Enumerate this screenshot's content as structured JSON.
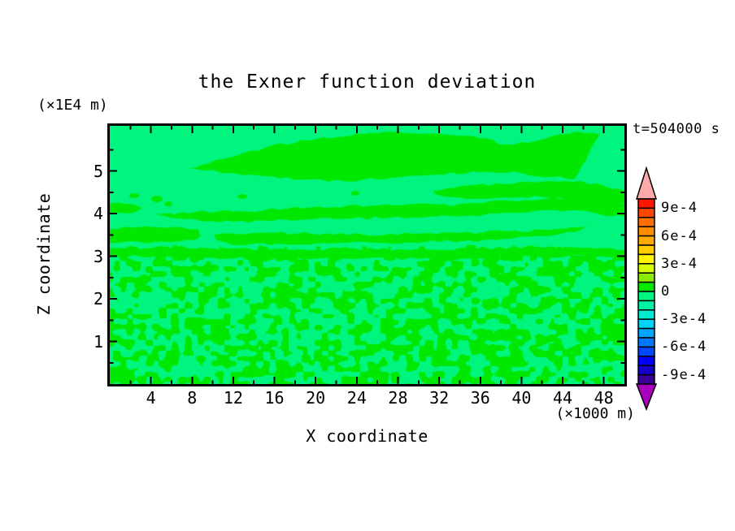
{
  "title": "the Exner function deviation",
  "time_label": "t=504000 s",
  "y_unit_label": "(×1E4 m)",
  "x_unit_label": "(×1000 m)",
  "x_axis_label": "X coordinate",
  "y_axis_label": "Z coordinate",
  "chart_data": {
    "type": "filled-contour",
    "title": "the Exner function deviation",
    "xlabel": "X coordinate",
    "ylabel": "Z coordinate",
    "x_units": "(×1000 m)",
    "y_units": "(×1E4 m)",
    "time_annotation": "t=504000 s",
    "x_range": [
      0,
      50
    ],
    "y_range": [
      0,
      6.06
    ],
    "x_major_ticks": [
      4,
      8,
      12,
      16,
      20,
      24,
      28,
      32,
      36,
      40,
      44,
      48
    ],
    "x_minor_ticks": [
      2,
      6,
      10,
      14,
      18,
      22,
      26,
      30,
      34,
      38,
      42,
      46
    ],
    "y_major_ticks": [
      1,
      2,
      3,
      4,
      5
    ],
    "y_minor_ticks": [
      0.5,
      1.5,
      2.5,
      3.5,
      4.5,
      5.5
    ],
    "contour_interval": 0.0001,
    "colorbar": {
      "labels": [
        "9e-4",
        "6e-4",
        "3e-4",
        "0",
        "-3e-4",
        "-6e-4",
        "-9e-4"
      ],
      "label_boundary_index": [
        1,
        4,
        7,
        10,
        13,
        16,
        19
      ],
      "segment_values_top_to_bottom": "10e-4 down to -10e-4 in 1e-4 steps",
      "segment_colors": [
        "#FF1400",
        "#FF4600",
        "#FF6E00",
        "#FF8C00",
        "#FFAA00",
        "#FFCD00",
        "#FFF500",
        "#D7FF00",
        "#8CEB00",
        "#00E800",
        "#00F57E",
        "#00F0A5",
        "#00EBD2",
        "#00D2F5",
        "#00A5FF",
        "#0078FF",
        "#0046FF",
        "#0000F5",
        "#1400C8",
        "#3C0096"
      ],
      "over_color": "#FFAAAA",
      "under_color": "#AA00BE"
    },
    "field_colors": {
      "slightly_positive_0_to_1e-4": "#00E800",
      "slightly_negative_0_to_-1e-4": "#00F57E"
    },
    "field_structure": {
      "bands": [
        [
          [
            95,
            52
          ],
          [
            138,
            41
          ],
          [
            200,
            24
          ],
          [
            262,
            14
          ],
          [
            330,
            9
          ],
          [
            408,
            10
          ],
          [
            455,
            15
          ],
          [
            488,
            23
          ],
          [
            515,
            21
          ],
          [
            545,
            12
          ],
          [
            575,
            7
          ],
          [
            603,
            11
          ],
          [
            592,
            28
          ],
          [
            581,
            48
          ],
          [
            571,
            66
          ],
          [
            545,
            63
          ],
          [
            505,
            58
          ],
          [
            455,
            57
          ],
          [
            402,
            60
          ],
          [
            348,
            64
          ],
          [
            295,
            69
          ],
          [
            243,
            66
          ],
          [
            192,
            62
          ],
          [
            148,
            58
          ],
          [
            117,
            55
          ]
        ],
        [
          [
            398,
            80
          ],
          [
            448,
            73
          ],
          [
            505,
            69
          ],
          [
            560,
            68
          ],
          [
            600,
            71
          ],
          [
            633,
            80
          ],
          [
            633,
            95
          ],
          [
            595,
            92
          ],
          [
            552,
            88
          ],
          [
            505,
            88
          ],
          [
            458,
            90
          ],
          [
            422,
            88
          ],
          [
            400,
            84
          ]
        ],
        [
          [
            0,
            96
          ],
          [
            30,
            97
          ],
          [
            40,
            101
          ],
          [
            32,
            106
          ],
          [
            0,
            107
          ]
        ],
        [
          [
            55,
            109
          ],
          [
            105,
            106
          ],
          [
            160,
            105
          ],
          [
            218,
            102
          ],
          [
            275,
            100
          ],
          [
            330,
            98
          ],
          [
            378,
            96
          ],
          [
            420,
            99
          ],
          [
            448,
            95
          ],
          [
            492,
            92
          ],
          [
            538,
            90
          ],
          [
            578,
            88
          ],
          [
            612,
            90
          ],
          [
            633,
            96
          ],
          [
            633,
            112
          ],
          [
            600,
            108
          ],
          [
            565,
            104
          ],
          [
            522,
            105
          ],
          [
            478,
            108
          ],
          [
            436,
            111
          ],
          [
            392,
            112
          ],
          [
            345,
            113
          ],
          [
            298,
            114
          ],
          [
            250,
            115
          ],
          [
            200,
            117
          ],
          [
            152,
            118
          ],
          [
            108,
            116
          ],
          [
            75,
            113
          ]
        ],
        [
          [
            0,
            127
          ],
          [
            55,
            125
          ],
          [
            108,
            127
          ],
          [
            112,
            136
          ],
          [
            104,
            141
          ],
          [
            55,
            143
          ],
          [
            0,
            144
          ]
        ],
        [
          [
            128,
            134
          ],
          [
            185,
            132
          ],
          [
            248,
            133
          ],
          [
            312,
            134
          ],
          [
            372,
            133
          ],
          [
            430,
            132
          ],
          [
            488,
            130
          ],
          [
            532,
            128
          ],
          [
            568,
            125
          ],
          [
            596,
            121
          ],
          [
            572,
            131
          ],
          [
            538,
            136
          ],
          [
            492,
            139
          ],
          [
            442,
            141
          ],
          [
            388,
            143
          ],
          [
            330,
            144
          ],
          [
            272,
            145
          ],
          [
            215,
            146
          ],
          [
            162,
            147
          ],
          [
            132,
            141
          ]
        ],
        [
          [
            0,
            151
          ],
          [
            70,
            149
          ],
          [
            150,
            151
          ],
          [
            225,
            153
          ],
          [
            300,
            151
          ],
          [
            375,
            153
          ],
          [
            450,
            151
          ],
          [
            525,
            149
          ],
          [
            590,
            150
          ],
          [
            633,
            153
          ],
          [
            633,
            161
          ],
          [
            585,
            160
          ],
          [
            520,
            161
          ],
          [
            450,
            163
          ],
          [
            380,
            164
          ],
          [
            310,
            163
          ],
          [
            240,
            164
          ],
          [
            170,
            163
          ],
          [
            100,
            162
          ],
          [
            40,
            161
          ],
          [
            0,
            160
          ]
        ]
      ],
      "dots": [
        [
          30,
          86,
          6,
          3
        ],
        [
          58,
          90,
          7,
          4
        ],
        [
          72,
          96,
          5,
          3
        ],
        [
          163,
          87,
          6,
          3
        ],
        [
          302,
          83,
          5,
          3
        ],
        [
          202,
          44,
          5,
          3
        ]
      ],
      "noise": {
        "scale_x": 8,
        "scale_y": 6.5,
        "threshold": 0.5,
        "y_start": 147
      }
    },
    "grid": false,
    "background": "#FFFFFF"
  }
}
